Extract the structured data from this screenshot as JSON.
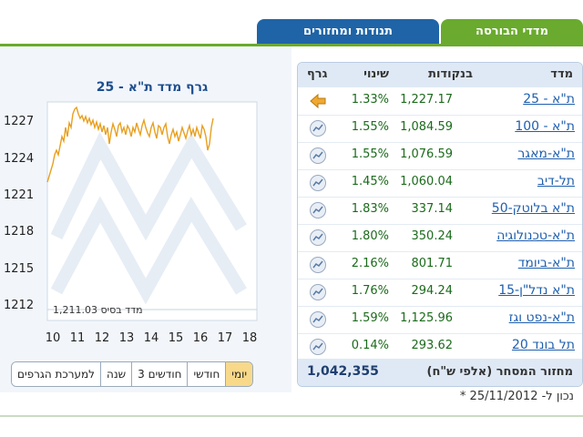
{
  "tabs": [
    {
      "label": "מדדי הבורסה",
      "active": true
    },
    {
      "label": "תנודות ומחזורים",
      "active": false
    }
  ],
  "graph": {
    "title": "גרף מדד ת\"א - 25",
    "base_label": "מדד בסיס 1,211.03",
    "y_ticks": [
      "1227",
      "1224",
      "1221",
      "1218",
      "1215",
      "1212"
    ],
    "x_ticks": [
      "10",
      "11",
      "12",
      "13",
      "14",
      "15",
      "16",
      "17",
      "18"
    ],
    "line_color": "#e8a020"
  },
  "periods": [
    "יומי",
    "חודשי",
    "3 חודשים",
    "שנה",
    "למערכת הגרפים"
  ],
  "table": {
    "headers": {
      "index": "מדד",
      "points": "בנקודות",
      "change": "שינוי",
      "graph": "גרף"
    },
    "rows": [
      {
        "name": "ת\"א - 25",
        "points": "1,227.17",
        "change": "1.33%",
        "icon": "arrow-left-icon"
      },
      {
        "name": "ת\"א - 100",
        "points": "1,084.59",
        "change": "1.55%",
        "icon": "chart-icon"
      },
      {
        "name": "ת\"א-מאגר",
        "points": "1,076.59",
        "change": "1.55%",
        "icon": "chart-icon"
      },
      {
        "name": "תל-דיב",
        "points": "1,060.04",
        "change": "1.45%",
        "icon": "chart-icon"
      },
      {
        "name": "ת\"א בלוטק-50",
        "points": "337.14",
        "change": "1.83%",
        "icon": "chart-icon"
      },
      {
        "name": "ת\"א-טכנולוגיה",
        "points": "350.24",
        "change": "1.80%",
        "icon": "chart-icon"
      },
      {
        "name": "ת\"א-ביומד",
        "points": "801.71",
        "change": "2.16%",
        "icon": "chart-icon"
      },
      {
        "name": "ת\"א נדל\"ן-15",
        "points": "294.24",
        "change": "1.76%",
        "icon": "chart-icon"
      },
      {
        "name": "ת\"א-נפט וגז",
        "points": "1,125.96",
        "change": "1.59%",
        "icon": "chart-icon"
      },
      {
        "name": "תל בונד 20",
        "points": "293.62",
        "change": "0.14%",
        "icon": "chart-icon"
      }
    ],
    "footer_label": "מחזור המסחר (אלפי ש\"ח)",
    "footer_value": "1,042,355"
  },
  "note": "* נכון ל- 25/11/2012",
  "colors": {
    "accent_green": "#6aaa2e",
    "tab_blue": "#1f64a6",
    "link": "#1f5fae",
    "positive": "#1b6b1b"
  }
}
